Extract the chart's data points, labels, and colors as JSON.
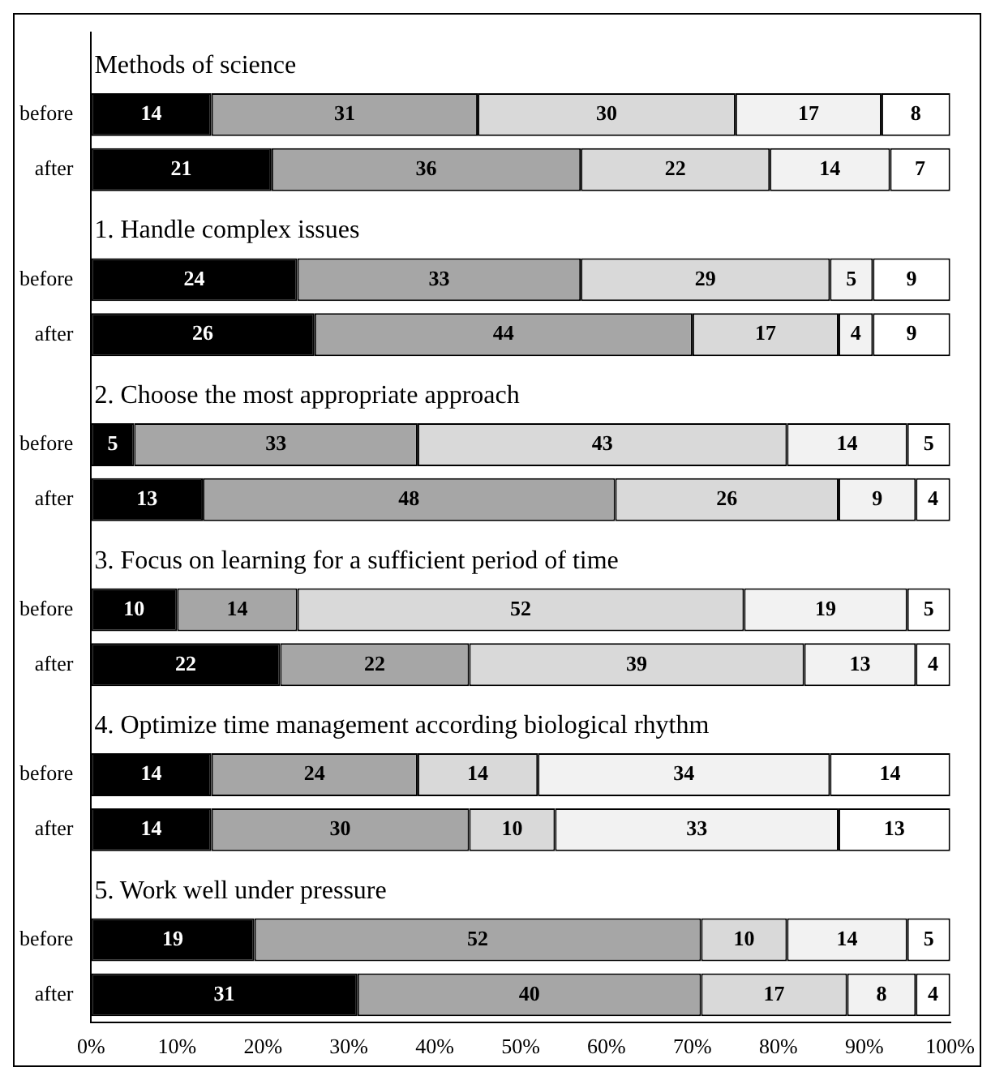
{
  "chart_data": {
    "type": "bar",
    "orientation": "horizontal",
    "stacked": true,
    "data_labels": true,
    "grid": false,
    "legend": false,
    "categories": [
      null,
      "before",
      "after",
      null,
      "before",
      "after",
      null,
      "before",
      "after",
      null,
      "before",
      "after",
      null,
      "before",
      "after",
      null,
      "before",
      "after"
    ],
    "annotations": [
      "Methods of science",
      "1. Handle complex issues",
      "2. Choose the most appropriate approach",
      "3. Focus on learning for a sufficient period of time",
      "4. Optimize time management according biological rhythm",
      "5. Work well under pressure"
    ],
    "xlim": [
      0,
      100
    ],
    "xticks": [
      {
        "value": 0,
        "label": "0%"
      },
      {
        "value": 10,
        "label": "10%"
      },
      {
        "value": 20,
        "label": "20%"
      },
      {
        "value": 30,
        "label": "30%"
      },
      {
        "value": 40,
        "label": "40%"
      },
      {
        "value": 50,
        "label": "50%"
      },
      {
        "value": 60,
        "label": "60%"
      },
      {
        "value": 70,
        "label": "70%"
      },
      {
        "value": 80,
        "label": "80%"
      },
      {
        "value": 90,
        "label": "90%"
      },
      {
        "value": 100,
        "label": "100%"
      }
    ],
    "series": [
      {
        "color": "#000000",
        "values": [
          null,
          14,
          21,
          null,
          24,
          26,
          null,
          5,
          13,
          null,
          10,
          22,
          null,
          14,
          14,
          null,
          19,
          31
        ]
      },
      {
        "color": "#a6a6a6",
        "values": [
          null,
          31,
          36,
          null,
          33,
          44,
          null,
          33,
          48,
          null,
          14,
          22,
          null,
          24,
          30,
          null,
          52,
          40
        ]
      },
      {
        "color": "#d9d9d9",
        "values": [
          null,
          30,
          22,
          null,
          29,
          17,
          null,
          43,
          26,
          null,
          52,
          39,
          null,
          14,
          10,
          null,
          10,
          17
        ]
      },
      {
        "color": "#f2f2f2",
        "values": [
          null,
          17,
          14,
          null,
          5,
          4,
          null,
          14,
          9,
          null,
          19,
          13,
          null,
          34,
          33,
          null,
          14,
          8
        ]
      },
      {
        "color": "#ffffff",
        "values": [
          null,
          8,
          7,
          null,
          9,
          9,
          null,
          5,
          4,
          null,
          5,
          4,
          null,
          14,
          13,
          null,
          5,
          4
        ]
      }
    ]
  }
}
